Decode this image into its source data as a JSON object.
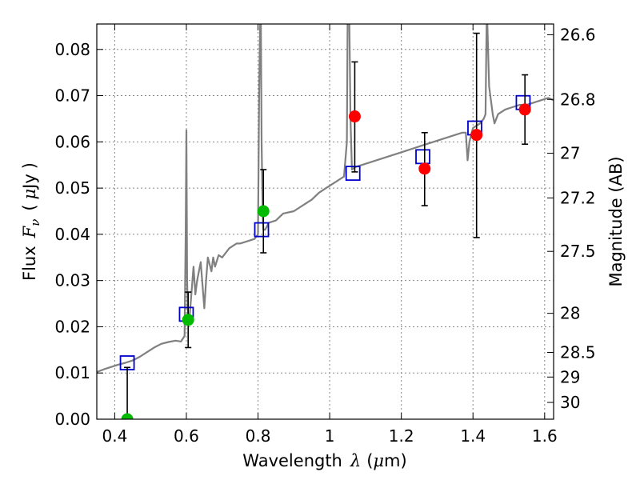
{
  "chart_data": {
    "type": "scatter",
    "title": "",
    "xlabel": {
      "prefix": "Wavelength",
      "symbol": "λ",
      "unit_open": "(",
      "unit_mu": "μ",
      "unit_rest": "m)"
    },
    "ylabel": {
      "prefix": "Flux",
      "symbol": "F",
      "subscript": "ν",
      "unit_open": "(",
      "unit_mu": "μ",
      "unit_rest": "Jy",
      "unit_close": ")"
    },
    "ylabel_right": "Magnitude (AB)",
    "xlim": [
      0.35,
      1.625
    ],
    "ylim": [
      0.0,
      0.0855
    ],
    "grid": true,
    "x_ticks": [
      {
        "v": 0.4,
        "label": "0.4"
      },
      {
        "v": 0.6,
        "label": "0.6"
      },
      {
        "v": 0.8,
        "label": "0.8"
      },
      {
        "v": 1.0,
        "label": "1"
      },
      {
        "v": 1.2,
        "label": "1.2"
      },
      {
        "v": 1.4,
        "label": "1.4"
      },
      {
        "v": 1.6,
        "label": "1.6"
      }
    ],
    "y_ticks": [
      {
        "v": 0.0,
        "label": "0.00"
      },
      {
        "v": 0.01,
        "label": "0.01"
      },
      {
        "v": 0.02,
        "label": "0.02"
      },
      {
        "v": 0.03,
        "label": "0.03"
      },
      {
        "v": 0.04,
        "label": "0.04"
      },
      {
        "v": 0.05,
        "label": "0.05"
      },
      {
        "v": 0.06,
        "label": "0.06"
      },
      {
        "v": 0.07,
        "label": "0.07"
      },
      {
        "v": 0.08,
        "label": "0.08"
      }
    ],
    "mag_ticks": [
      {
        "v": 26.6,
        "label": "26.6"
      },
      {
        "v": 26.8,
        "label": "26.8"
      },
      {
        "v": 27.0,
        "label": "27"
      },
      {
        "v": 27.2,
        "label": "27.2"
      },
      {
        "v": 27.5,
        "label": "27.5"
      },
      {
        "v": 28.0,
        "label": "28"
      },
      {
        "v": 28.5,
        "label": "28.5"
      },
      {
        "v": 29.0,
        "label": "29"
      },
      {
        "v": 30.0,
        "label": "30"
      }
    ],
    "colors": {
      "spectrum": "#808080",
      "model": "#0000cc",
      "green_points": "#00bb00",
      "red_points": "#ff0000",
      "errorbar": "#000000",
      "grid": "#888888"
    },
    "spectrum": {
      "x": [
        0.35,
        0.37,
        0.39,
        0.41,
        0.43,
        0.45,
        0.47,
        0.49,
        0.51,
        0.53,
        0.55,
        0.57,
        0.585,
        0.595,
        0.598,
        0.6,
        0.602,
        0.605,
        0.61,
        0.62,
        0.625,
        0.63,
        0.64,
        0.65,
        0.655,
        0.66,
        0.67,
        0.675,
        0.68,
        0.69,
        0.7,
        0.72,
        0.74,
        0.75,
        0.77,
        0.79,
        0.8,
        0.803,
        0.806,
        0.808,
        0.81,
        0.813,
        0.815,
        0.82,
        0.83,
        0.85,
        0.87,
        0.9,
        0.93,
        0.95,
        0.97,
        0.99,
        1.01,
        1.03,
        1.04,
        1.048,
        1.05,
        1.055,
        1.058,
        1.062,
        1.07,
        1.09,
        1.11,
        1.13,
        1.15,
        1.17,
        1.19,
        1.21,
        1.23,
        1.25,
        1.27,
        1.29,
        1.31,
        1.33,
        1.35,
        1.37,
        1.38,
        1.385,
        1.39,
        1.4,
        1.42,
        1.43,
        1.435,
        1.438,
        1.44,
        1.445,
        1.455,
        1.46,
        1.47,
        1.49,
        1.51,
        1.53,
        1.55,
        1.57,
        1.59,
        1.61,
        1.625
      ],
      "y": [
        0.0102,
        0.0108,
        0.0113,
        0.0118,
        0.0122,
        0.0127,
        0.0135,
        0.0145,
        0.0155,
        0.0163,
        0.0167,
        0.017,
        0.0168,
        0.018,
        0.04,
        0.0625,
        0.03,
        0.0205,
        0.023,
        0.033,
        0.027,
        0.03,
        0.034,
        0.024,
        0.03,
        0.035,
        0.032,
        0.035,
        0.033,
        0.0355,
        0.035,
        0.037,
        0.038,
        0.038,
        0.0385,
        0.039,
        0.04,
        0.07,
        0.086,
        0.086,
        0.06,
        0.044,
        0.041,
        0.041,
        0.0425,
        0.043,
        0.0445,
        0.045,
        0.0465,
        0.0475,
        0.049,
        0.05,
        0.051,
        0.052,
        0.0525,
        0.06,
        0.086,
        0.086,
        0.065,
        0.054,
        0.0545,
        0.055,
        0.0555,
        0.056,
        0.0565,
        0.057,
        0.0575,
        0.058,
        0.0585,
        0.059,
        0.0595,
        0.06,
        0.0605,
        0.061,
        0.0615,
        0.062,
        0.062,
        0.056,
        0.06,
        0.063,
        0.064,
        0.065,
        0.066,
        0.086,
        0.086,
        0.072,
        0.066,
        0.064,
        0.066,
        0.067,
        0.0675,
        0.068,
        0.068,
        0.0685,
        0.069,
        0.0695,
        0.069
      ]
    },
    "model_points": {
      "x": [
        0.435,
        0.6,
        0.81,
        1.065,
        1.26,
        1.405,
        1.54
      ],
      "y": [
        0.0122,
        0.0227,
        0.041,
        0.0532,
        0.0568,
        0.063,
        0.0685
      ]
    },
    "observed_points": [
      {
        "x": 0.435,
        "y": 0.0,
        "err_low": 0.0,
        "err_high": 0.0112,
        "color": "green"
      },
      {
        "x": 0.605,
        "y": 0.0215,
        "err_low": 0.006,
        "err_high": 0.006,
        "color": "green"
      },
      {
        "x": 0.815,
        "y": 0.045,
        "err_low": 0.009,
        "err_high": 0.009,
        "color": "green"
      },
      {
        "x": 1.07,
        "y": 0.0655,
        "err_low": 0.012,
        "err_high": 0.0118,
        "color": "red"
      },
      {
        "x": 1.265,
        "y": 0.0542,
        "err_low": 0.008,
        "err_high": 0.0078,
        "color": "red"
      },
      {
        "x": 1.41,
        "y": 0.0615,
        "err_low": 0.0222,
        "err_high": 0.022,
        "color": "red"
      },
      {
        "x": 1.545,
        "y": 0.067,
        "err_low": 0.0075,
        "err_high": 0.0075,
        "color": "red"
      }
    ]
  }
}
